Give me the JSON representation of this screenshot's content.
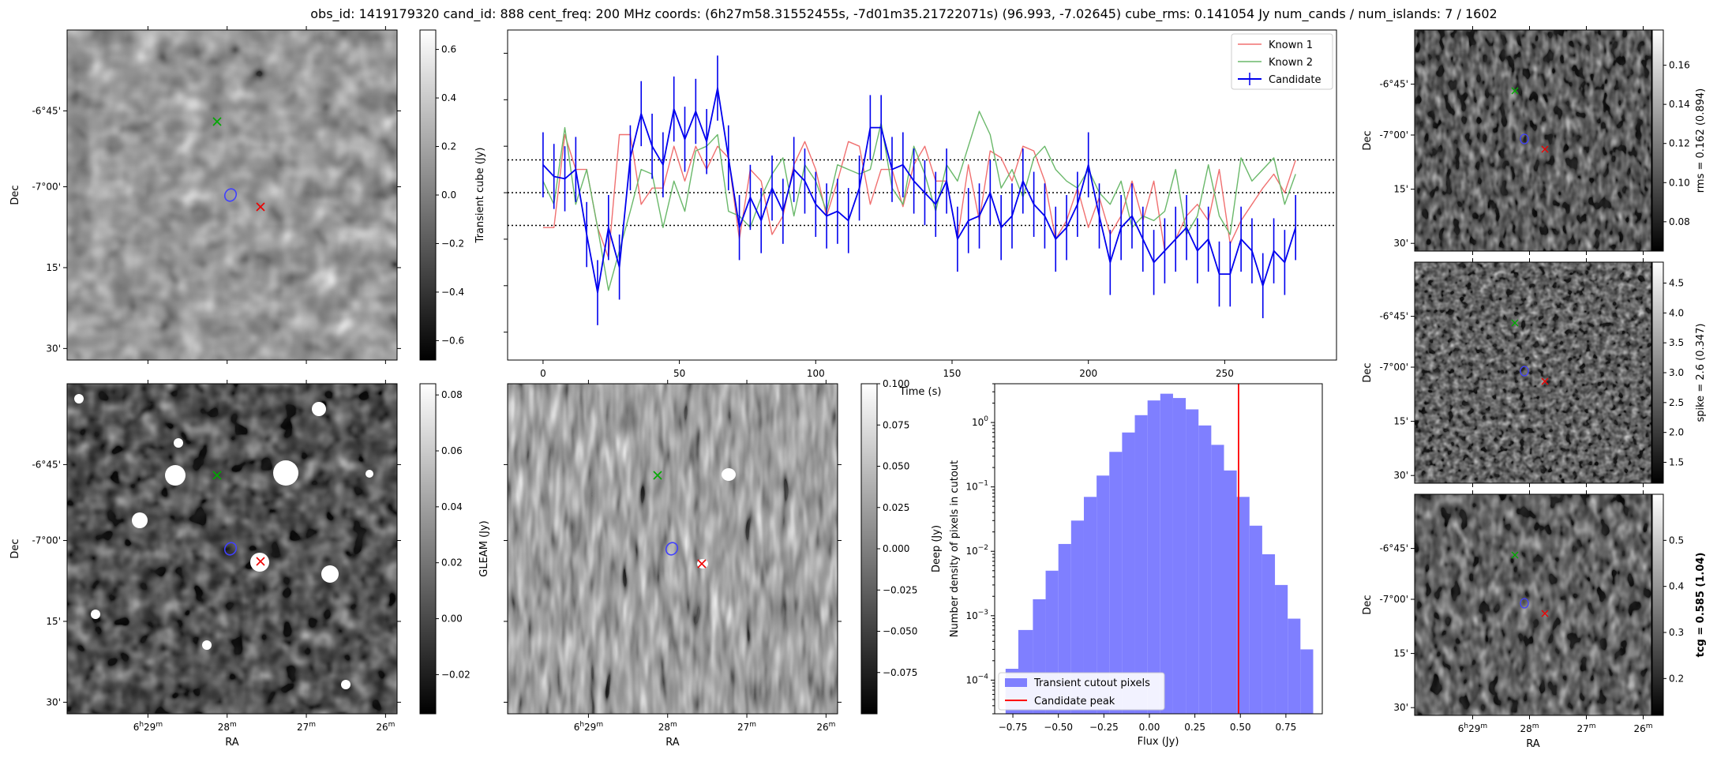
{
  "suptitle": "obs_id: 1419179320 cand_id: 888 cent_freq: 200 MHz coords: (6h27m58.31552455s, -7d01m35.21722071s) (96.993, -7.02645) cube_rms: 0.141054 Jy num_cands / num_islands: 7 / 1602",
  "colors": {
    "known1": "#f07070",
    "known2": "#6ab86a",
    "candidate": "#0000ee",
    "hist": "#7f7fff",
    "peak": "#ff0000",
    "marker_green": "#00aa00",
    "marker_red": "#ee0000",
    "marker_blue": "#4040ff"
  },
  "sky_axes": {
    "ra_label": "RA",
    "dec_label": "Dec",
    "ra_ticks": [
      {
        "main": "6",
        "sup1": "h",
        "mid": "29",
        "sup2": "m"
      },
      {
        "main": "28",
        "sup1": "",
        "mid": "",
        "sup2": "m"
      },
      {
        "main": "27",
        "sup1": "",
        "mid": "",
        "sup2": "m"
      },
      {
        "main": "26",
        "sup1": "",
        "mid": "",
        "sup2": "m"
      }
    ],
    "dec_ticks": [
      "-6°45'",
      "-7°00'",
      "15'",
      "30'"
    ]
  },
  "chart_data": [
    {
      "type": "heatmap",
      "name": "transient_cube_cutout",
      "colorbar_label": "Transient cube (Jy)",
      "colorbar_ticks": [
        0.6,
        0.4,
        0.2,
        0.0,
        -0.2,
        -0.4,
        -0.6
      ],
      "colorbar_tick_labels": [
        "0.6",
        "0.4",
        "0.2",
        "0.0",
        "−0.2",
        "−0.4",
        "−0.6"
      ],
      "vmin": -0.68,
      "vmax": 0.68
    },
    {
      "type": "line",
      "name": "lightcurve",
      "xlabel": "Time (s)",
      "ylabel": "",
      "xlim": [
        -13,
        291
      ],
      "ylim": [
        -0.72,
        0.7
      ],
      "xticks": [
        0,
        50,
        100,
        150,
        200,
        250
      ],
      "hlines": [
        0.141,
        0.0,
        -0.141
      ],
      "legend_position": "top-right",
      "series": [
        {
          "name": "Known 1",
          "x": [
            0,
            4,
            8,
            12,
            16,
            20,
            24,
            28,
            32,
            36,
            40,
            44,
            48,
            52,
            56,
            60,
            64,
            68,
            72,
            76,
            80,
            84,
            88,
            92,
            96,
            100,
            104,
            108,
            112,
            116,
            120,
            124,
            128,
            132,
            136,
            140,
            144,
            148,
            152,
            156,
            160,
            164,
            168,
            172,
            176,
            180,
            184,
            188,
            192,
            196,
            200,
            204,
            208,
            212,
            216,
            220,
            224,
            228,
            232,
            236,
            240,
            244,
            248,
            252,
            256,
            260,
            264,
            268,
            272,
            276
          ],
          "y": [
            -0.15,
            -0.15,
            0.25,
            0.1,
            0.1,
            -0.15,
            -0.28,
            0.25,
            0.25,
            -0.05,
            0.02,
            0.02,
            0.2,
            0.05,
            0.2,
            0.1,
            0.2,
            0.15,
            -0.2,
            0.1,
            0.05,
            -0.18,
            -0.1,
            0.12,
            0.22,
            0.1,
            -0.1,
            0.05,
            0.22,
            0.2,
            -0.05,
            0.1,
            0.1,
            -0.06,
            0.12,
            0.2,
            0.05,
            0.05,
            -0.2,
            0.12,
            -0.12,
            0.18,
            0.15,
            0.05,
            0.2,
            0.18,
            0.05,
            -0.2,
            -0.12,
            0.02,
            -0.15,
            -0.02,
            -0.18,
            -0.1,
            0.05,
            -0.12,
            0.05,
            -0.25,
            -0.2,
            -0.1,
            -0.05,
            -0.12,
            0.1,
            -0.22,
            -0.12,
            -0.05,
            0.02,
            0.08,
            0.0,
            0.14
          ]
        },
        {
          "name": "Known 2",
          "x": [
            0,
            4,
            8,
            12,
            16,
            20,
            24,
            28,
            32,
            36,
            40,
            44,
            48,
            52,
            56,
            60,
            64,
            68,
            72,
            76,
            80,
            84,
            88,
            92,
            96,
            100,
            104,
            108,
            112,
            116,
            120,
            124,
            128,
            132,
            136,
            140,
            144,
            148,
            152,
            156,
            160,
            164,
            168,
            172,
            176,
            180,
            184,
            188,
            192,
            196,
            200,
            204,
            208,
            212,
            216,
            220,
            224,
            228,
            232,
            236,
            240,
            244,
            248,
            252,
            256,
            260,
            264,
            268,
            272,
            276
          ],
          "y": [
            0.05,
            -0.05,
            0.28,
            -0.05,
            0.1,
            -0.15,
            -0.42,
            -0.25,
            -0.08,
            0.1,
            0.08,
            -0.15,
            0.05,
            -0.08,
            0.18,
            0.2,
            0.25,
            -0.08,
            -0.1,
            -0.15,
            -0.02,
            0.08,
            0.15,
            -0.1,
            0.12,
            0.05,
            -0.08,
            0.12,
            0.1,
            0.08,
            0.1,
            0.3,
            0.02,
            -0.05,
            0.2,
            0.08,
            -0.08,
            0.12,
            0.05,
            0.2,
            0.35,
            0.25,
            0.02,
            0.1,
            -0.02,
            0.15,
            0.2,
            0.1,
            0.05,
            0.02,
            0.1,
            0.0,
            -0.05,
            0.05,
            -0.15,
            -0.1,
            -0.12,
            -0.08,
            0.1,
            -0.18,
            -0.1,
            0.12,
            -0.1,
            -0.18,
            0.15,
            0.05,
            0.1,
            0.15,
            -0.05,
            0.08
          ]
        },
        {
          "name": "Candidate",
          "x": [
            0,
            4,
            8,
            12,
            16,
            20,
            24,
            28,
            32,
            36,
            40,
            44,
            48,
            52,
            56,
            60,
            64,
            68,
            72,
            76,
            80,
            84,
            88,
            92,
            96,
            100,
            104,
            108,
            112,
            116,
            120,
            124,
            128,
            132,
            136,
            140,
            144,
            148,
            152,
            156,
            160,
            164,
            168,
            172,
            176,
            180,
            184,
            188,
            192,
            196,
            200,
            204,
            208,
            212,
            216,
            220,
            224,
            228,
            232,
            236,
            240,
            244,
            248,
            252,
            256,
            260,
            264,
            268,
            272,
            276
          ],
          "y": [
            0.12,
            0.07,
            0.06,
            0.1,
            -0.18,
            -0.43,
            -0.15,
            -0.32,
            0.15,
            0.34,
            0.2,
            0.12,
            0.36,
            0.23,
            0.35,
            0.22,
            0.45,
            0.15,
            -0.15,
            -0.02,
            -0.12,
            0.02,
            -0.08,
            0.1,
            0.05,
            -0.05,
            -0.1,
            -0.08,
            -0.12,
            0.02,
            0.28,
            0.28,
            0.1,
            0.12,
            0.05,
            0.0,
            -0.05,
            0.05,
            -0.2,
            -0.12,
            -0.1,
            0.0,
            -0.15,
            -0.1,
            0.05,
            -0.05,
            -0.1,
            -0.2,
            -0.15,
            -0.05,
            0.12,
            -0.1,
            -0.3,
            -0.15,
            -0.1,
            -0.2,
            -0.3,
            -0.25,
            -0.2,
            -0.15,
            -0.25,
            -0.2,
            -0.35,
            -0.35,
            -0.2,
            -0.25,
            -0.4,
            -0.25,
            -0.3,
            -0.15
          ],
          "yerr": 0.14
        }
      ]
    },
    {
      "type": "heatmap",
      "name": "gleam_cutout",
      "colorbar_label": "GLEAM (Jy)",
      "colorbar_ticks": [
        0.08,
        0.06,
        0.04,
        0.02,
        0.0,
        -0.02
      ],
      "colorbar_tick_labels": [
        "0.08",
        "0.06",
        "0.04",
        "0.02",
        "0.00",
        "−0.02"
      ],
      "vmin": -0.034,
      "vmax": 0.084
    },
    {
      "type": "heatmap",
      "name": "deep_cutout",
      "colorbar_label": "Deep (Jy)",
      "colorbar_ticks": [
        0.1,
        0.075,
        0.05,
        0.025,
        0.0,
        -0.025,
        -0.05,
        -0.075
      ],
      "colorbar_tick_labels": [
        "0.100",
        "0.075",
        "0.050",
        "0.025",
        "0.000",
        "−0.025",
        "−0.050",
        "−0.075"
      ],
      "vmin": -0.1,
      "vmax": 0.1
    },
    {
      "type": "bar",
      "name": "flux_histogram",
      "title": "",
      "xlabel": "Flux (Jy)",
      "ylabel": "Number density of pixels in cutout",
      "yscale": "log",
      "xlim": [
        -0.85,
        0.95
      ],
      "ylim": [
        3e-05,
        4.0
      ],
      "xticks": [
        -0.75,
        -0.5,
        -0.25,
        0.0,
        0.25,
        0.5,
        0.75
      ],
      "xtick_labels": [
        "−0.75",
        "−0.50",
        "−0.25",
        "0.00",
        "0.25",
        "0.50",
        "0.75"
      ],
      "bin_edges": [
        -0.79,
        -0.72,
        -0.64,
        -0.57,
        -0.5,
        -0.43,
        -0.36,
        -0.29,
        -0.22,
        -0.15,
        -0.08,
        -0.01,
        0.06,
        0.13,
        0.2,
        0.27,
        0.34,
        0.41,
        0.48,
        0.55,
        0.62,
        0.69,
        0.76,
        0.83,
        0.9
      ],
      "values": [
        0.00015,
        0.0006,
        0.0018,
        0.005,
        0.013,
        0.03,
        0.07,
        0.15,
        0.35,
        0.7,
        1.3,
        2.2,
        2.8,
        2.4,
        1.6,
        0.9,
        0.45,
        0.18,
        0.07,
        0.025,
        0.009,
        0.003,
        0.0009,
        0.0003
      ],
      "candidate_peak": 0.49,
      "legend_position": "bottom-left",
      "legend": [
        "Transient cutout pixels",
        "Candidate peak"
      ]
    },
    {
      "type": "heatmap",
      "name": "rms_cutout",
      "colorbar_label": "rms = 0.162 (0.894)",
      "colorbar_ticks": [
        0.16,
        0.14,
        0.12,
        0.1,
        0.08
      ],
      "colorbar_tick_labels": [
        "0.16",
        "0.14",
        "0.12",
        "0.10",
        "0.08"
      ],
      "vmin": 0.065,
      "vmax": 0.178
    },
    {
      "type": "heatmap",
      "name": "spike_cutout",
      "colorbar_label": "spike = 2.6 (0.347)",
      "colorbar_ticks": [
        4.5,
        4.0,
        3.5,
        3.0,
        2.5,
        2.0,
        1.5
      ],
      "colorbar_tick_labels": [
        "4.5",
        "4.0",
        "3.5",
        "3.0",
        "2.5",
        "2.0",
        "1.5"
      ],
      "vmin": 1.15,
      "vmax": 4.85
    },
    {
      "type": "heatmap",
      "name": "tcg_cutout",
      "colorbar_label": "tcg = 0.585 (1.04)",
      "colorbar_ticks": [
        0.5,
        0.4,
        0.3,
        0.2
      ],
      "colorbar_tick_labels": [
        "0.5",
        "0.4",
        "0.3",
        "0.2"
      ],
      "vmin": 0.12,
      "vmax": 0.6
    }
  ]
}
